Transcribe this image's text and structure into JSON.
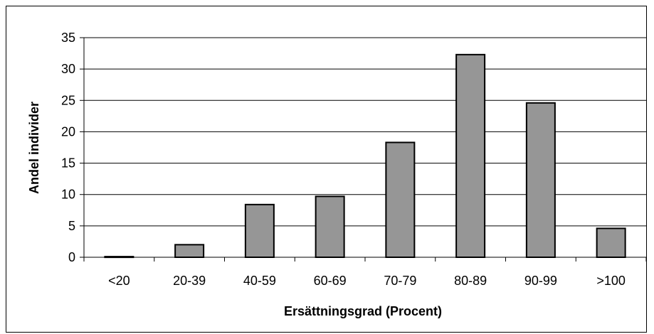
{
  "chart_data": {
    "type": "bar",
    "categories": [
      "<20",
      "20-39",
      "40-59",
      "60-69",
      "70-79",
      "80-89",
      "90-99",
      ">100"
    ],
    "values": [
      0.1,
      2.0,
      8.4,
      9.7,
      18.3,
      32.3,
      24.6,
      4.6
    ],
    "xlabel": "Ersättningsgrad (Procent)",
    "ylabel": "Andel individer",
    "ylim": [
      0,
      35
    ],
    "yticks": [
      0,
      5,
      10,
      15,
      20,
      25,
      30,
      35
    ],
    "grid": true,
    "legend": "none",
    "bar_color": "#969696",
    "bar_edge_color": "#000000"
  }
}
